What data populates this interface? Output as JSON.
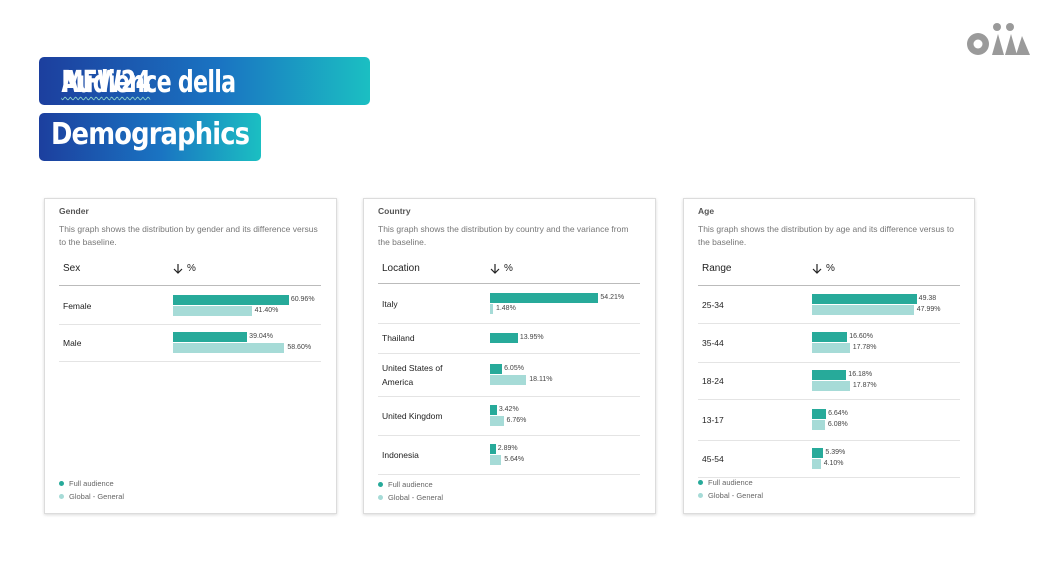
{
  "header": {
    "line1_prefix": "Audience della ",
    "line1_highlight": "MFW24",
    "line2": "Demographics"
  },
  "logo": {
    "icon": "brand-logo-icon",
    "color": "#9a9a9a"
  },
  "colors": {
    "full_audience": "#27aa9a",
    "global": "#a6dbd7"
  },
  "legend": {
    "full": "Full audience",
    "global": "Global - General"
  },
  "sort_icon": "arrow-down-icon",
  "chart_data": [
    {
      "type": "bar",
      "title": "Gender",
      "description": "This graph shows the distribution by gender and its difference versus to the baseline.",
      "label_header": "Sex",
      "value_header": "%",
      "legend_placement": "bottom-left",
      "categories": [
        "Female",
        "Male"
      ],
      "series": [
        {
          "name": "Full audience",
          "values": [
            60.96,
            39.04
          ],
          "labels": [
            "60.96%",
            "39.04%"
          ]
        },
        {
          "name": "Global - General",
          "values": [
            41.4,
            58.6
          ],
          "labels": [
            "41.40%",
            "58.60%"
          ]
        }
      ]
    },
    {
      "type": "bar",
      "title": "Country",
      "description": "This graph shows the distribution by country and the variance from the baseline.",
      "label_header": "Location",
      "value_header": "%",
      "legend_placement": "bottom-left",
      "categories": [
        "Italy",
        "Thailand",
        "United States of America",
        "United Kingdom",
        "Indonesia"
      ],
      "series": [
        {
          "name": "Full audience",
          "values": [
            54.21,
            13.95,
            6.05,
            3.42,
            2.89
          ],
          "labels": [
            "54.21%",
            "13.95%",
            "6.05%",
            "3.42%",
            "2.89%"
          ]
        },
        {
          "name": "Global - General",
          "values": [
            1.48,
            null,
            18.11,
            6.76,
            5.64
          ],
          "labels": [
            "1.48%",
            "",
            "18.11%",
            "6.76%",
            "5.64%"
          ]
        }
      ]
    },
    {
      "type": "bar",
      "title": "Age",
      "description": "This graph shows the distribution by age and its difference versus to the baseline.",
      "label_header": "Range",
      "value_header": "%",
      "legend_placement": "bottom-left",
      "categories": [
        "25-34",
        "35-44",
        "18-24",
        "13-17",
        "45-54"
      ],
      "series": [
        {
          "name": "Full audience",
          "values": [
            49.38,
            16.6,
            16.18,
            6.64,
            5.39
          ],
          "labels": [
            "49.38",
            "16.60%",
            "16.18%",
            "6.64%",
            "5.39%"
          ]
        },
        {
          "name": "Global - General",
          "values": [
            47.99,
            17.78,
            17.87,
            6.08,
            4.1
          ],
          "labels": [
            "47.99%",
            "17.78%",
            "17.87%",
            "6.08%",
            "4.10%"
          ]
        }
      ]
    }
  ]
}
